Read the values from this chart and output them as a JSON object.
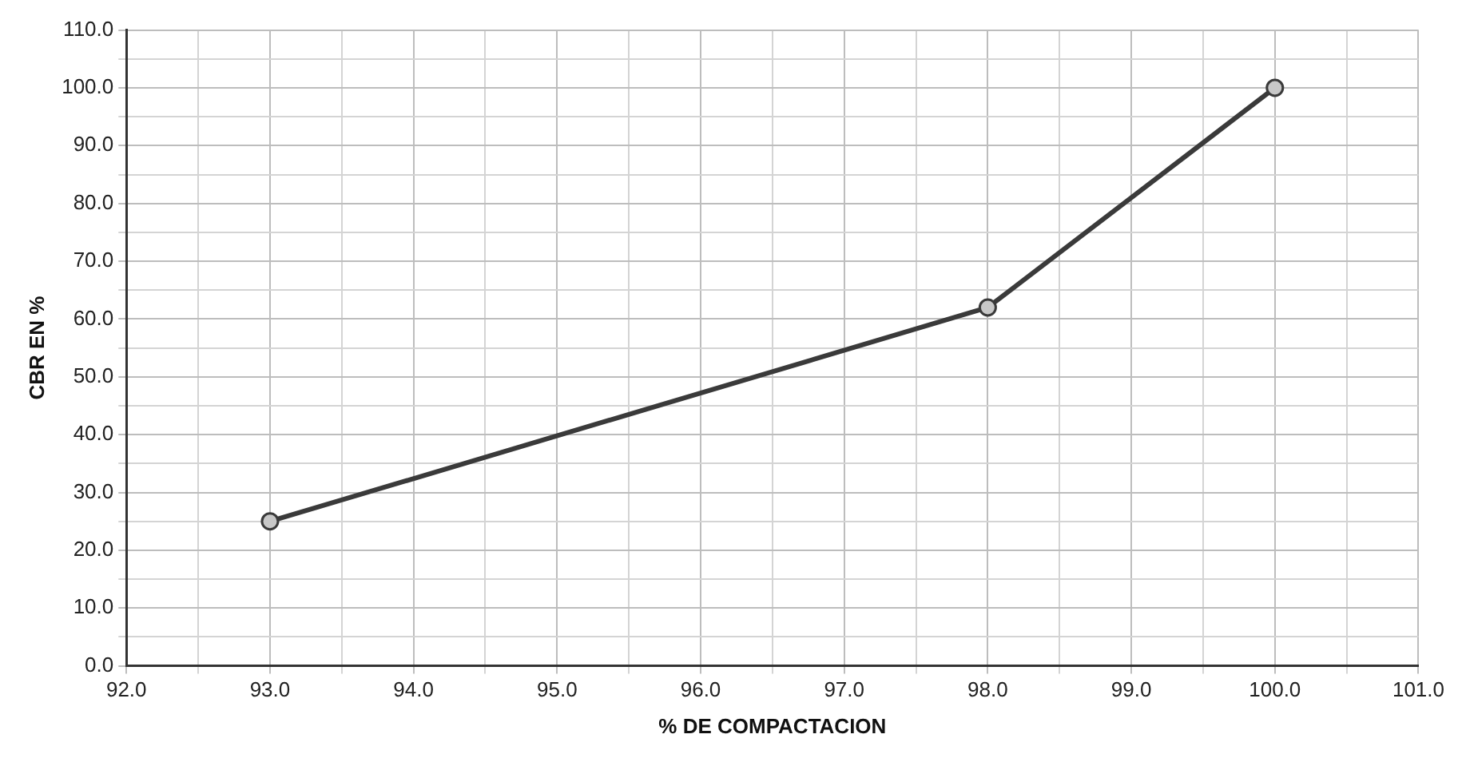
{
  "chart_data": {
    "type": "line",
    "xlabel": "% DE COMPACTACION",
    "ylabel": "CBR EN %",
    "x": [
      93,
      98,
      100
    ],
    "series": [
      {
        "color": "#3a3a3a",
        "values": [
          25,
          62,
          100
        ]
      }
    ],
    "xlim": [
      92,
      101
    ],
    "xticks": [
      {
        "value": 92,
        "label": "92.0"
      },
      {
        "value": 92.5,
        "label": null
      },
      {
        "value": 93,
        "label": "93.0"
      },
      {
        "value": 93.5,
        "label": null
      },
      {
        "value": 94,
        "label": "94.0"
      },
      {
        "value": 94.5,
        "label": null
      },
      {
        "value": 95,
        "label": "95.0"
      },
      {
        "value": 95.5,
        "label": null
      },
      {
        "value": 96,
        "label": "96.0"
      },
      {
        "value": 96.5,
        "label": null
      },
      {
        "value": 97,
        "label": "97.0"
      },
      {
        "value": 97.5,
        "label": null
      },
      {
        "value": 98,
        "label": "98.0"
      },
      {
        "value": 98.5,
        "label": null
      },
      {
        "value": 99,
        "label": "99.0"
      },
      {
        "value": 99.5,
        "label": null
      },
      {
        "value": 100,
        "label": "100.0"
      },
      {
        "value": 100.5,
        "label": null
      },
      {
        "value": 101,
        "label": "101.0"
      }
    ],
    "ylim": [
      0,
      110
    ],
    "yticks": [
      {
        "value": 0,
        "label": "0.0"
      },
      {
        "value": 5,
        "label": null
      },
      {
        "value": 10,
        "label": "10.0"
      },
      {
        "value": 15,
        "label": null
      },
      {
        "value": 20,
        "label": "20.0"
      },
      {
        "value": 25,
        "label": null
      },
      {
        "value": 30,
        "label": "30.0"
      },
      {
        "value": 35,
        "label": null
      },
      {
        "value": 40,
        "label": "40.0"
      },
      {
        "value": 45,
        "label": null
      },
      {
        "value": 50,
        "label": "50.0"
      },
      {
        "value": 55,
        "label": null
      },
      {
        "value": 60,
        "label": "60.0"
      },
      {
        "value": 65,
        "label": null
      },
      {
        "value": 70,
        "label": "70.0"
      },
      {
        "value": 75,
        "label": null
      },
      {
        "value": 80,
        "label": "80.0"
      },
      {
        "value": 85,
        "label": null
      },
      {
        "value": 90,
        "label": "90.0"
      },
      {
        "value": 95,
        "label": null
      },
      {
        "value": 100,
        "label": "100.0"
      },
      {
        "value": 105,
        "label": null
      },
      {
        "value": 110,
        "label": "110.0"
      }
    ],
    "grid": true,
    "marker": "circle",
    "line_style": "solid"
  }
}
